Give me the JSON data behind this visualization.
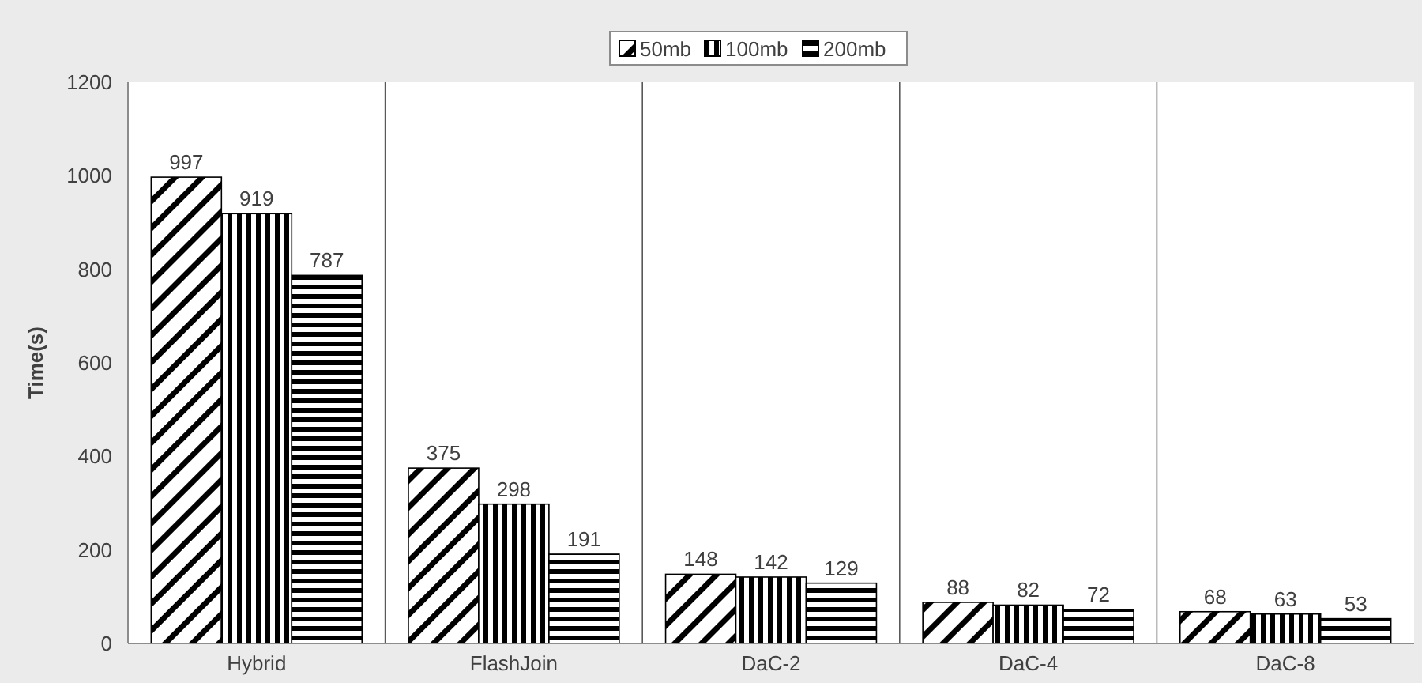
{
  "chart_data": {
    "type": "bar",
    "ylabel": "Time(s)",
    "categories": [
      "Hybrid",
      "FlashJoin",
      "DaC-2",
      "DaC-4",
      "DaC-8"
    ],
    "series": [
      {
        "name": "50mb",
        "color": "#000000",
        "values": [
          997,
          375,
          148,
          88,
          68
        ]
      },
      {
        "name": "100mb",
        "color": "#000000",
        "values": [
          919,
          298,
          142,
          82,
          63
        ]
      },
      {
        "name": "200mb",
        "color": "#000000",
        "values": [
          787,
          191,
          129,
          72,
          53
        ]
      }
    ],
    "ylim": [
      0,
      1200
    ],
    "yticks": [
      0,
      200,
      400,
      600,
      800,
      1000,
      1200
    ],
    "data_labels": true,
    "legend": "top",
    "grid": false
  }
}
